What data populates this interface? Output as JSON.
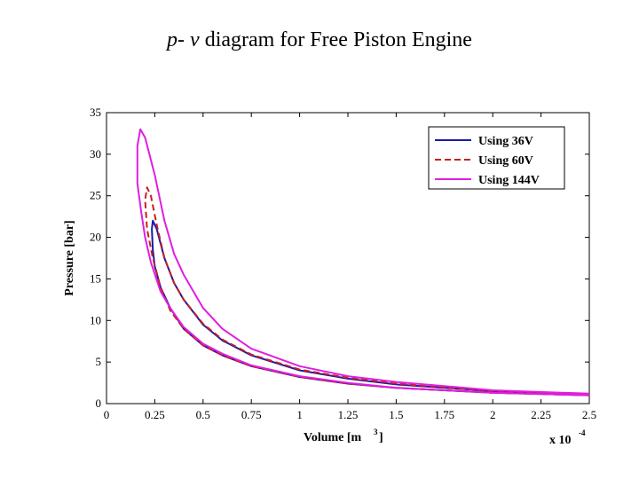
{
  "slide": {
    "title_var_p": "p-",
    "title_var_v": "v",
    "title_rest": " diagram for Free Piston Engine"
  },
  "chart_data": {
    "type": "line",
    "title": "p- v diagram for Free Piston Engine",
    "xlabel": "Volume [m3]",
    "ylabel": "Pressure [bar]",
    "x_multiplier": "x 10-4",
    "xlim": [
      0,
      2.5
    ],
    "ylim": [
      0,
      35
    ],
    "xticks": [
      "0",
      "0.25",
      "0.5",
      "0.75",
      "1",
      "1.25",
      "1.5",
      "1.75",
      "2",
      "2.25",
      "2.5"
    ],
    "yticks": [
      "0",
      "5",
      "10",
      "15",
      "20",
      "25",
      "30",
      "35"
    ],
    "legend_position": "top-right",
    "series": [
      {
        "name": "Using 36V",
        "color": "#1a1aa6",
        "style": "solid",
        "compression": [
          [
            2.5,
            1.0
          ],
          [
            2.0,
            1.3
          ],
          [
            1.5,
            1.9
          ],
          [
            1.25,
            2.4
          ],
          [
            1.0,
            3.2
          ],
          [
            0.75,
            4.5
          ],
          [
            0.6,
            5.8
          ],
          [
            0.5,
            7.0
          ],
          [
            0.4,
            9.0
          ],
          [
            0.33,
            11.5
          ],
          [
            0.28,
            14.0
          ],
          [
            0.25,
            16.5
          ],
          [
            0.24,
            18.5
          ],
          [
            0.235,
            21.0
          ]
        ],
        "expansion": [
          [
            0.235,
            21.0
          ],
          [
            0.24,
            22.0
          ],
          [
            0.26,
            21.0
          ],
          [
            0.3,
            17.5
          ],
          [
            0.35,
            14.5
          ],
          [
            0.4,
            12.5
          ],
          [
            0.5,
            9.5
          ],
          [
            0.6,
            7.6
          ],
          [
            0.75,
            5.8
          ],
          [
            1.0,
            4.0
          ],
          [
            1.25,
            3.0
          ],
          [
            1.5,
            2.3
          ],
          [
            2.0,
            1.5
          ],
          [
            2.5,
            1.1
          ]
        ]
      },
      {
        "name": "Using 60V",
        "color": "#c81e1e",
        "style": "dashed",
        "compression": [
          [
            2.5,
            1.0
          ],
          [
            2.0,
            1.3
          ],
          [
            1.5,
            1.9
          ],
          [
            1.25,
            2.4
          ],
          [
            1.0,
            3.2
          ],
          [
            0.75,
            4.5
          ],
          [
            0.6,
            5.8
          ],
          [
            0.5,
            7.0
          ],
          [
            0.4,
            9.0
          ],
          [
            0.33,
            11.2
          ],
          [
            0.28,
            14.0
          ],
          [
            0.24,
            17.5
          ],
          [
            0.21,
            21.0
          ],
          [
            0.2,
            24.5
          ]
        ],
        "expansion": [
          [
            0.2,
            24.5
          ],
          [
            0.21,
            26.0
          ],
          [
            0.23,
            25.0
          ],
          [
            0.26,
            21.5
          ],
          [
            0.3,
            17.5
          ],
          [
            0.35,
            14.5
          ],
          [
            0.4,
            12.5
          ],
          [
            0.5,
            9.6
          ],
          [
            0.6,
            7.7
          ],
          [
            0.75,
            5.9
          ],
          [
            1.0,
            4.1
          ],
          [
            1.25,
            3.1
          ],
          [
            1.5,
            2.4
          ],
          [
            2.0,
            1.5
          ],
          [
            2.5,
            1.1
          ]
        ]
      },
      {
        "name": "Using 144V",
        "color": "#e01ee0",
        "style": "solid",
        "compression": [
          [
            2.5,
            1.0
          ],
          [
            2.0,
            1.3
          ],
          [
            1.5,
            1.9
          ],
          [
            1.25,
            2.5
          ],
          [
            1.0,
            3.3
          ],
          [
            0.75,
            4.6
          ],
          [
            0.6,
            6.0
          ],
          [
            0.5,
            7.2
          ],
          [
            0.4,
            9.2
          ],
          [
            0.33,
            11.5
          ],
          [
            0.28,
            13.5
          ],
          [
            0.23,
            17.0
          ],
          [
            0.2,
            20.0
          ],
          [
            0.18,
            23.0
          ],
          [
            0.16,
            26.5
          ],
          [
            0.16,
            31.0
          ]
        ],
        "expansion": [
          [
            0.16,
            31.0
          ],
          [
            0.175,
            33.0
          ],
          [
            0.2,
            32.0
          ],
          [
            0.25,
            27.5
          ],
          [
            0.3,
            22.0
          ],
          [
            0.35,
            18.0
          ],
          [
            0.4,
            15.5
          ],
          [
            0.5,
            11.5
          ],
          [
            0.6,
            9.0
          ],
          [
            0.75,
            6.6
          ],
          [
            1.0,
            4.5
          ],
          [
            1.25,
            3.3
          ],
          [
            1.5,
            2.6
          ],
          [
            2.0,
            1.6
          ],
          [
            2.5,
            1.2
          ]
        ]
      }
    ]
  }
}
